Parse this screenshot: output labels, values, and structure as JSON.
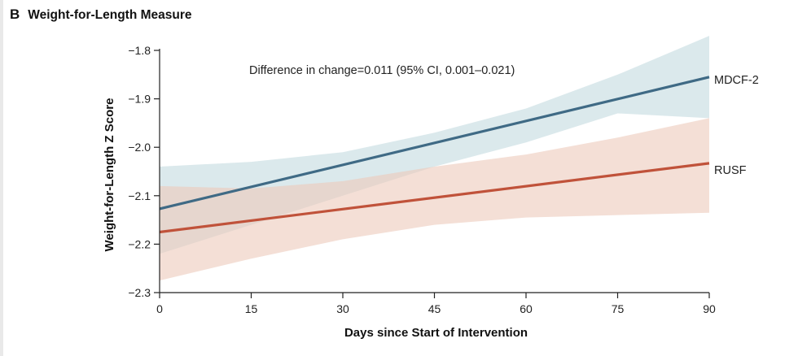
{
  "panel": {
    "letter": "B",
    "title": "Weight-for-Length Measure"
  },
  "colors": {
    "mdcf_line": "#3f6a85",
    "mdcf_band": "#cfe1e6",
    "rusf_line": "#c0523a",
    "rusf_band": "#ecc9bb",
    "axis": "#222222"
  },
  "chart_data": {
    "type": "line",
    "title": "Weight-for-Length Measure",
    "xlabel": "Days since Start of Intervention",
    "ylabel": "Weight-for-Length Z Score",
    "xlim": [
      0,
      90
    ],
    "ylim": [
      -2.3,
      -1.8
    ],
    "x_ticks": [
      0,
      15,
      30,
      45,
      60,
      75,
      90
    ],
    "x_tick_labels": [
      "0",
      "15",
      "30",
      "45",
      "60",
      "75",
      "90"
    ],
    "y_ticks": [
      -1.8,
      -1.9,
      -2.0,
      -2.1,
      -2.2,
      -2.3
    ],
    "y_tick_labels": [
      "−1.8",
      "−1.9",
      "−2.0",
      "−2.1",
      "−2.2",
      "−2.3"
    ],
    "grid": false,
    "annotation": "Difference in change=0.011 (95% CI, 0.001–0.021)",
    "series": [
      {
        "name": "MDCF-2",
        "x": [
          0,
          90
        ],
        "y": [
          -2.127,
          -1.855
        ],
        "band": {
          "x": [
            0,
            15,
            30,
            45,
            60,
            75,
            90
          ],
          "lower": [
            -2.22,
            -2.16,
            -2.1,
            -2.04,
            -1.99,
            -1.93,
            -1.94
          ],
          "upper": [
            -2.04,
            -2.03,
            -2.01,
            -1.97,
            -1.92,
            -1.85,
            -1.77
          ]
        }
      },
      {
        "name": "RUSF",
        "x": [
          0,
          90
        ],
        "y": [
          -2.175,
          -2.033
        ],
        "band": {
          "x": [
            0,
            15,
            30,
            45,
            60,
            75,
            90
          ],
          "lower": [
            -2.275,
            -2.23,
            -2.19,
            -2.16,
            -2.145,
            -2.14,
            -2.135
          ],
          "upper": [
            -2.08,
            -2.085,
            -2.07,
            -2.04,
            -2.015,
            -1.98,
            -1.94
          ]
        }
      }
    ]
  }
}
